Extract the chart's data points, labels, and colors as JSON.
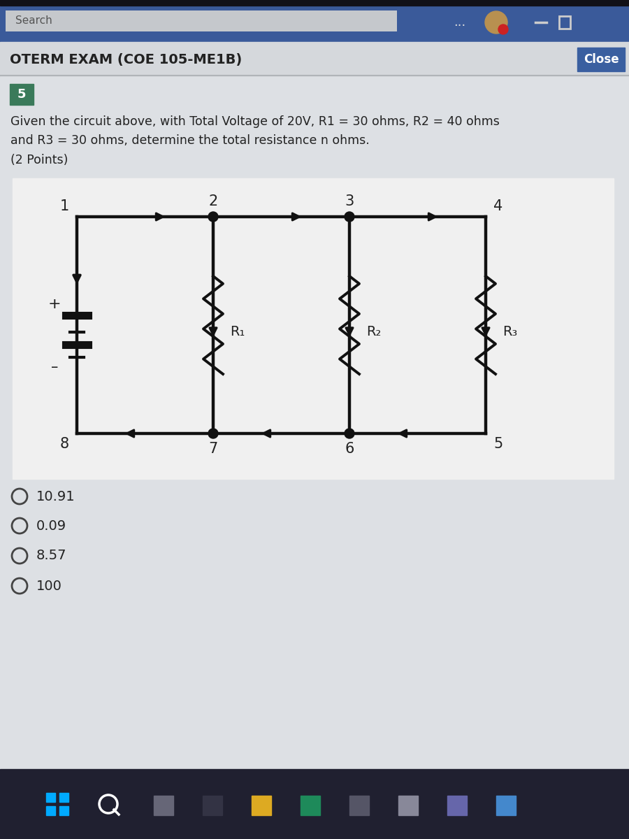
{
  "title": "OTERM EXAM (COE 105-ME1B)",
  "search_text": "Search",
  "close_text": "Close",
  "question_number": "5",
  "question_line1": "Given the circuit above, with Total Voltage of 20V, R1 = 30 ohms, R2 = 40 ohms",
  "question_line2": "and R3 = 30 ohms, determine the total resistance n ohms.",
  "question_line3": "(2 Points)",
  "resistor_labels": [
    "R₁",
    "R₂",
    "R₃"
  ],
  "choices": [
    "10.91",
    "0.09",
    "8.57",
    "100"
  ],
  "bg_top_color": "#3a5a9a",
  "bg_main_color": "#d5d8dc",
  "bg_content_color": "#dde0e4",
  "close_btn_color": "#3a5fa0",
  "question_num_color": "#3a7a5a",
  "taskbar_color": "#202030",
  "wire_color": "#111111",
  "circuit_bg": "#f0f0f0"
}
